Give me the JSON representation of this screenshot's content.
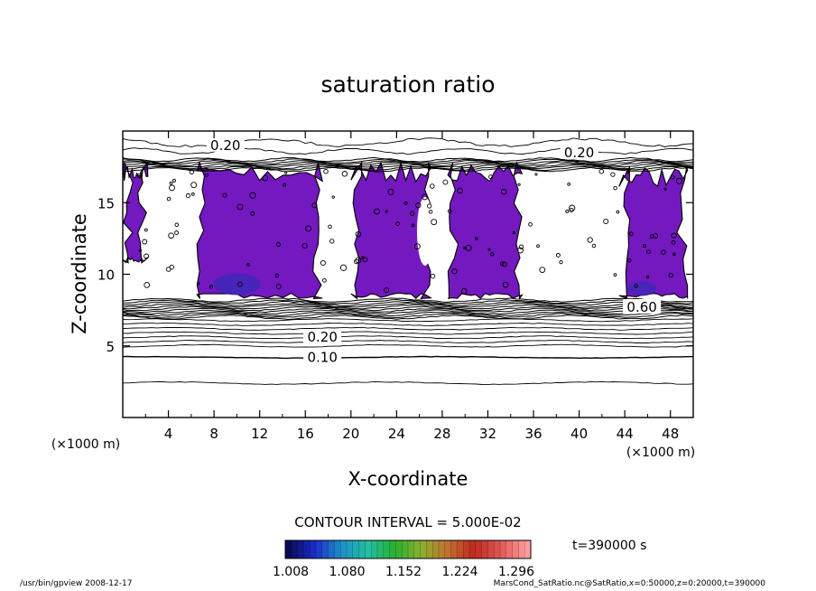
{
  "chart_data": {
    "type": "contour",
    "title": "saturation ratio",
    "xlabel": "X-coordinate",
    "ylabel": "Z-coordinate",
    "x_unit": "(×1000 m)",
    "z_unit": "(×1000 m)",
    "xlim": [
      0,
      50
    ],
    "ylim": [
      0,
      20
    ],
    "xticks": [
      4,
      8,
      12,
      16,
      20,
      24,
      28,
      32,
      36,
      40,
      44,
      48
    ],
    "yticks": [
      5,
      10,
      15
    ],
    "contour_interval_text": "CONTOUR INTERVAL = 5.000E-02",
    "time_text": "t=390000 s",
    "contour_labels": [
      {
        "text": "0.20",
        "x": 9,
        "y": 19.0
      },
      {
        "text": "0.20",
        "x": 40,
        "y": 18.5
      },
      {
        "text": "0.20",
        "x": 17.5,
        "y": 5.6
      },
      {
        "text": "0.10",
        "x": 17.5,
        "y": 4.2
      },
      {
        "text": "0.60",
        "x": 45.5,
        "y": 7.7
      }
    ],
    "colorbar": {
      "ticks": [
        "1.008",
        "1.080",
        "1.152",
        "1.224",
        "1.296"
      ],
      "colors": [
        "#0a0a55",
        "#1c2cc8",
        "#1e90c8",
        "#22c0a0",
        "#28b030",
        "#8ab030",
        "#c07030",
        "#c02820",
        "#e05a5a",
        "#ff9e9e"
      ]
    },
    "supersaturated_regions": [
      {
        "x": [
          0,
          2.2
        ],
        "z": [
          10.8,
          17.8
        ]
      },
      {
        "x": [
          6.5,
          17.5
        ],
        "z": [
          8.3,
          17.8
        ]
      },
      {
        "x": [
          20,
          27
        ],
        "z": [
          8.3,
          17.8
        ]
      },
      {
        "x": [
          28.5,
          35
        ],
        "z": [
          8.3,
          17.8
        ]
      },
      {
        "x": [
          43.5,
          49.5
        ],
        "z": [
          8.3,
          17.5
        ]
      }
    ]
  },
  "footer": {
    "left": "/usr/bin/gpview  2008-12-17",
    "right": "MarsCond_SatRatio.nc@SatRatio,x=0:50000,z=0:20000,t=390000"
  }
}
